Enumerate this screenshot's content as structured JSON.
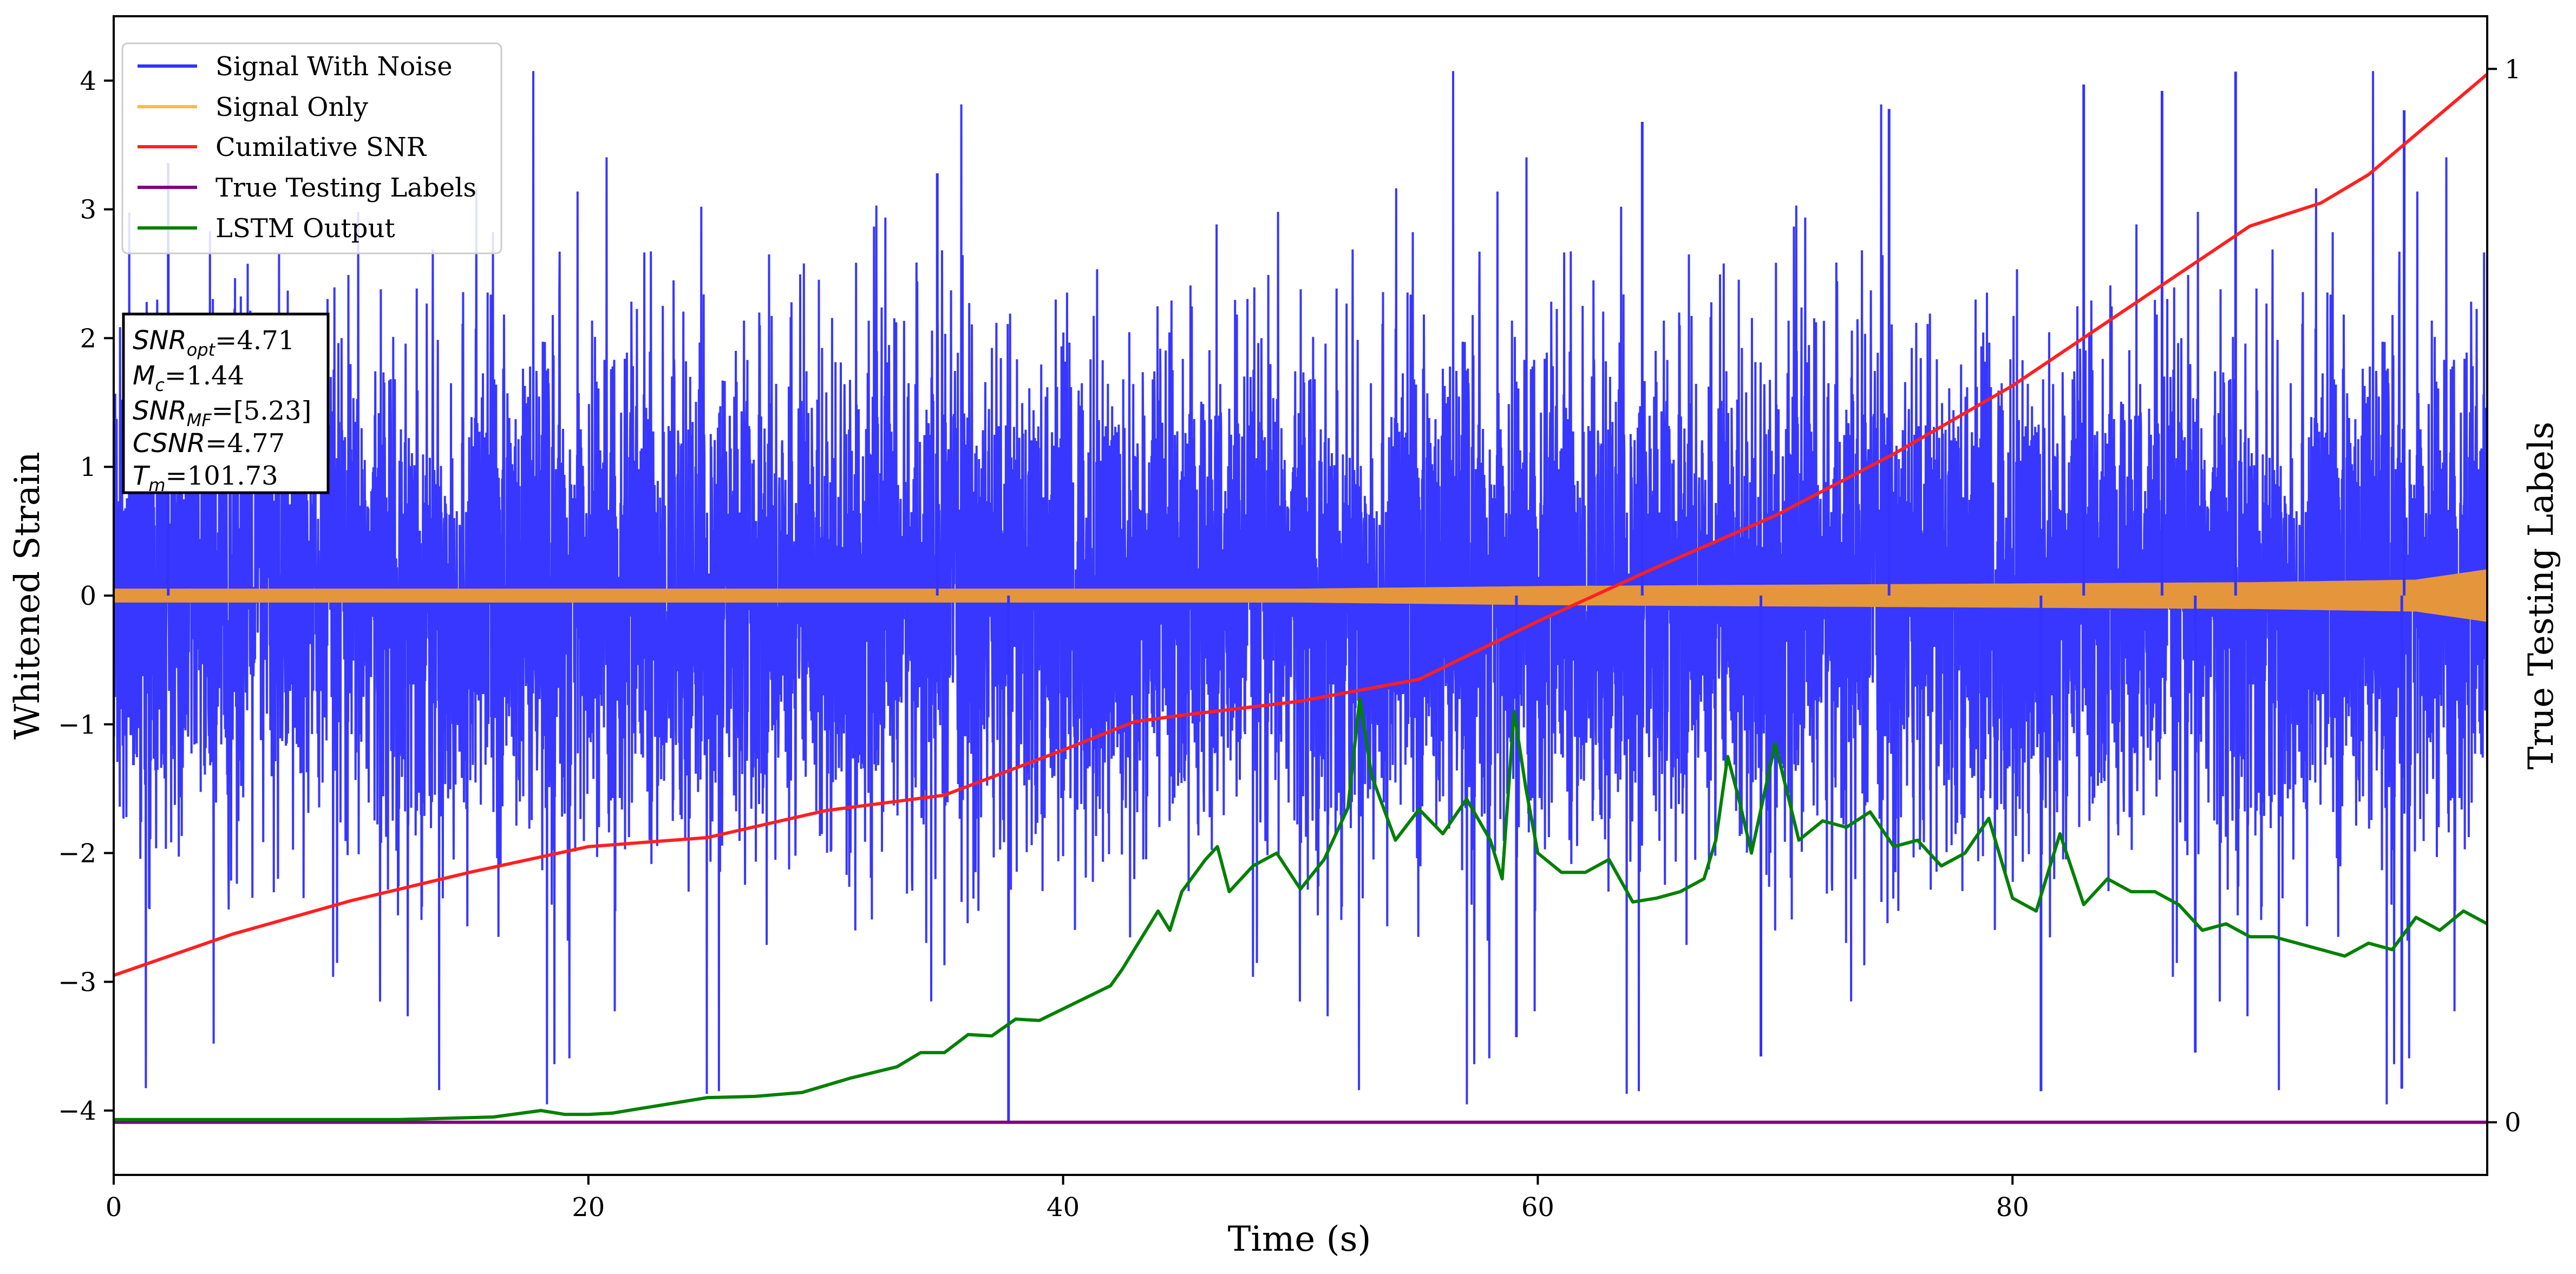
{
  "chart_data": {
    "type": "line",
    "xlabel": "Time (s)",
    "ylabel_left": "Whitened Strain",
    "ylabel_right": "True Testing Labels",
    "xlim": [
      0,
      100
    ],
    "ylim_left": [
      -4.5,
      4.5
    ],
    "ylim_right": [
      -0.05,
      1.05
    ],
    "x_ticks": [
      0,
      20,
      40,
      60,
      80
    ],
    "y_ticks_left": [
      -4,
      -3,
      -2,
      -1,
      0,
      1,
      2,
      3,
      4
    ],
    "y_ticks_right": [
      0,
      1
    ],
    "grid": false,
    "legend_placement": "upper-left",
    "legend": [
      {
        "label": "Signal With Noise",
        "color": "#3333ff"
      },
      {
        "label": "Signal Only",
        "color": "#ffb84d"
      },
      {
        "label": "Cumilative SNR",
        "color": "#ff2020"
      },
      {
        "label": "True Testing Labels",
        "color": "#800080"
      },
      {
        "label": "LSTM Output",
        "color": "#008000"
      }
    ],
    "annotations": {
      "snr_opt": {
        "base": "SNR",
        "sub": "opt",
        "value": "=4.71"
      },
      "mc": {
        "base": "M",
        "sub": "c",
        "value": "=1.44"
      },
      "snr_mf": {
        "base": "SNR",
        "sub": "MF",
        "value": "=[5.23]"
      },
      "csnr": {
        "base": "CSNR",
        "sub": "",
        "value": "=4.77"
      },
      "tm": {
        "base": "T",
        "sub": "m",
        "value": "=101.73"
      }
    },
    "series": [
      {
        "name": "Signal With Noise",
        "axis": "left",
        "color": "#3333ff",
        "style": "dense-noise",
        "envelope": [
          -4.1,
          4.1
        ],
        "notable_spikes": [
          {
            "x": 37.7,
            "y": -4.1
          },
          {
            "x": 89.4,
            "y": 4.07
          },
          {
            "x": 96.5,
            "y": 3.77
          },
          {
            "x": 86.3,
            "y": 3.92
          },
          {
            "x": 83.0,
            "y": 3.97
          },
          {
            "x": 74.8,
            "y": 3.78
          },
          {
            "x": 64.4,
            "y": 3.68
          },
          {
            "x": 2.3,
            "y": 3.36
          },
          {
            "x": 34.7,
            "y": 3.28
          },
          {
            "x": 81.2,
            "y": -3.85
          },
          {
            "x": 96.4,
            "y": -3.83
          },
          {
            "x": 69.4,
            "y": -3.58
          },
          {
            "x": 87.7,
            "y": -3.55
          },
          {
            "x": 59.1,
            "y": -3.43
          }
        ]
      },
      {
        "name": "Signal Only",
        "axis": "left",
        "color": "#e5963c",
        "style": "oscillation-band",
        "amplitude_points": [
          [
            0,
            0.05
          ],
          [
            20,
            0.05
          ],
          [
            40,
            0.05
          ],
          [
            50,
            0.05
          ],
          [
            55,
            0.06
          ],
          [
            60,
            0.07
          ],
          [
            70,
            0.08
          ],
          [
            80,
            0.09
          ],
          [
            90,
            0.1
          ],
          [
            97,
            0.12
          ],
          [
            100,
            0.2
          ]
        ]
      },
      {
        "name": "Cumilative SNR",
        "axis": "left",
        "color": "#ff2020",
        "x": [
          0,
          5,
          10,
          15,
          20,
          25,
          30,
          35,
          40,
          43,
          45,
          50,
          55,
          60,
          65,
          70,
          75,
          80,
          85,
          90,
          93,
          95,
          100
        ],
        "values": [
          -2.95,
          -2.63,
          -2.37,
          -2.15,
          -1.95,
          -1.88,
          -1.67,
          -1.55,
          -1.2,
          -0.98,
          -0.93,
          -0.82,
          -0.65,
          -0.2,
          0.22,
          0.62,
          1.1,
          1.63,
          2.25,
          2.87,
          3.05,
          3.27,
          4.05
        ]
      },
      {
        "name": "True Testing Labels",
        "axis": "right",
        "color": "#800080",
        "x": [
          0,
          100
        ],
        "values": [
          0,
          0
        ]
      },
      {
        "name": "LSTM Output",
        "axis": "left",
        "color": "#008000",
        "x": [
          0,
          12,
          16,
          18,
          19,
          20,
          21,
          22,
          24,
          25,
          27,
          29,
          31,
          33,
          34,
          35,
          36,
          37,
          38,
          39,
          40,
          41,
          42,
          42.5,
          43,
          44,
          44.5,
          45,
          46,
          46.5,
          47,
          48,
          49,
          50,
          51,
          52,
          52.5,
          53,
          54,
          55,
          56,
          57,
          58,
          58.5,
          59,
          59.5,
          60,
          61,
          62,
          63,
          64,
          65,
          66,
          67,
          67.5,
          68,
          68.5,
          69,
          70,
          71,
          72,
          73,
          74,
          75,
          76,
          77,
          78,
          79,
          80,
          81,
          82,
          83,
          84,
          85,
          86,
          87,
          88,
          89,
          90,
          91,
          92,
          93,
          94,
          95,
          96,
          97,
          98,
          99,
          100
        ],
        "values": [
          -4.07,
          -4.07,
          -4.05,
          -4.0,
          -4.03,
          -4.03,
          -4.02,
          -3.99,
          -3.93,
          -3.9,
          -3.89,
          -3.86,
          -3.75,
          -3.66,
          -3.55,
          -3.55,
          -3.41,
          -3.42,
          -3.29,
          -3.3,
          -3.21,
          -3.12,
          -3.03,
          -2.9,
          -2.75,
          -2.45,
          -2.6,
          -2.3,
          -2.05,
          -1.95,
          -2.3,
          -2.1,
          -2.0,
          -2.28,
          -2.05,
          -1.65,
          -0.8,
          -1.4,
          -1.9,
          -1.66,
          -1.85,
          -1.58,
          -1.9,
          -2.2,
          -0.9,
          -1.5,
          -2.0,
          -2.15,
          -2.15,
          -2.05,
          -2.38,
          -2.35,
          -2.3,
          -2.2,
          -1.9,
          -1.25,
          -1.6,
          -2.0,
          -1.15,
          -1.9,
          -1.75,
          -1.8,
          -1.68,
          -1.95,
          -1.9,
          -2.1,
          -2.0,
          -1.73,
          -2.35,
          -2.45,
          -1.85,
          -2.4,
          -2.2,
          -2.3,
          -2.3,
          -2.4,
          -2.6,
          -2.55,
          -2.65,
          -2.65,
          -2.7,
          -2.75,
          -2.8,
          -2.7,
          -2.75,
          -2.5,
          -2.6,
          -2.45,
          -2.55
        ]
      }
    ]
  }
}
